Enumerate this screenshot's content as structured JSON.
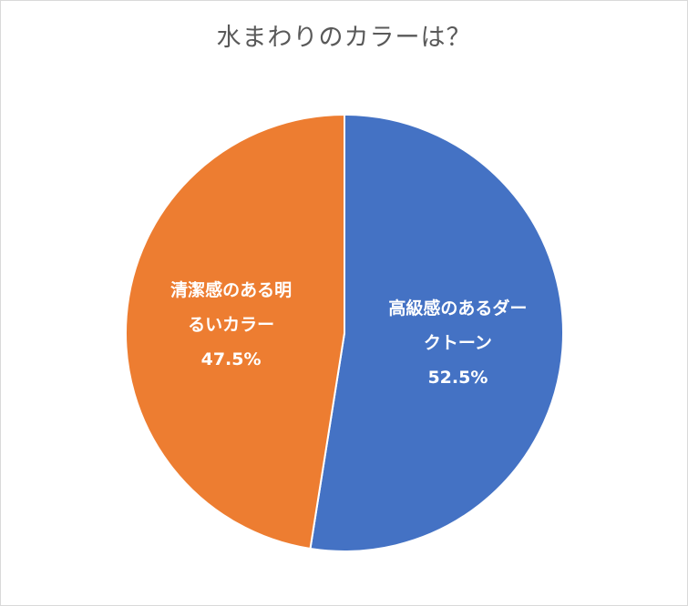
{
  "chart_data": {
    "type": "pie",
    "title": "水まわりのカラーは？",
    "start_angle_deg": 0,
    "direction": "clockwise",
    "slices": [
      {
        "label_lines": [
          "高級感のあるダー",
          "クトーン"
        ],
        "value": 52.5,
        "value_label": "52.5%",
        "color": "#4472c4"
      },
      {
        "label_lines": [
          "清潔感のある明",
          "るいカラー"
        ],
        "value": 47.5,
        "value_label": "47.5%",
        "color": "#ed7d31"
      }
    ]
  }
}
